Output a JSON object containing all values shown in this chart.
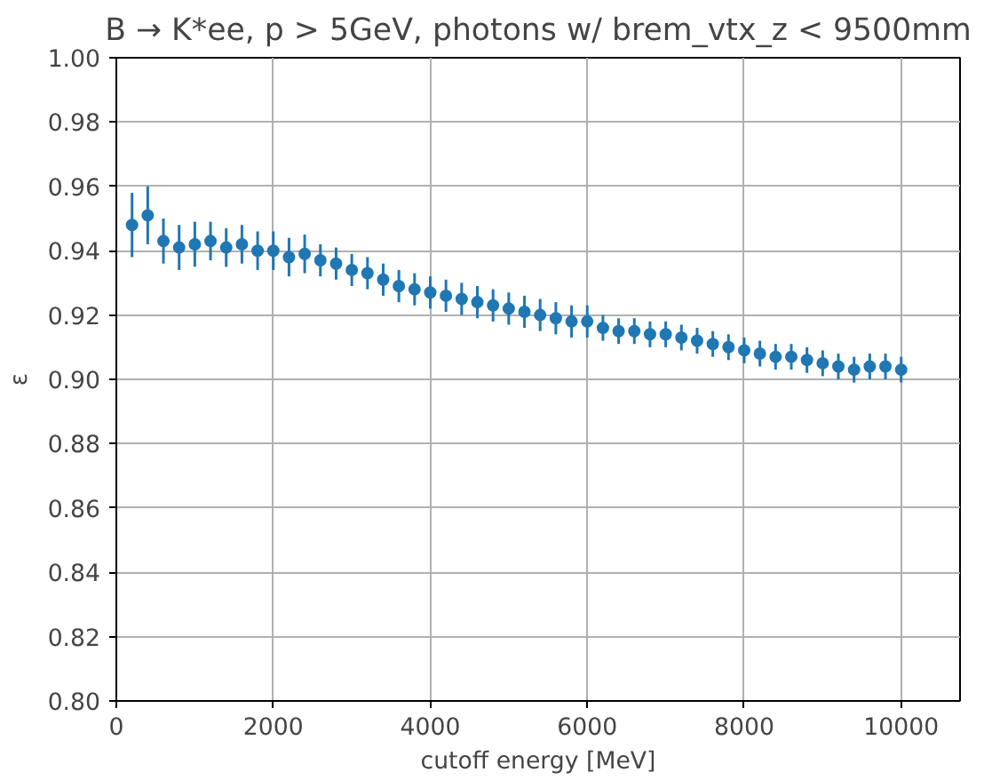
{
  "chart_data": {
    "type": "scatter",
    "title": "B → K*ee, p > 5GeV, photons w/ brem_vtx_z < 9500mm",
    "xlabel": "cutoff energy [MeV]",
    "ylabel": "ε",
    "x": [
      200,
      400,
      600,
      800,
      1000,
      1200,
      1400,
      1600,
      1800,
      2000,
      2200,
      2400,
      2600,
      2800,
      3000,
      3200,
      3400,
      3600,
      3800,
      4000,
      4200,
      4400,
      4600,
      4800,
      5000,
      5200,
      5400,
      5600,
      5800,
      6000,
      6200,
      6400,
      6600,
      6800,
      7000,
      7200,
      7400,
      7600,
      7800,
      8000,
      8200,
      8400,
      8600,
      8800,
      9000,
      9200,
      9400,
      9600,
      9800,
      10000
    ],
    "series": [
      {
        "color": "#1f77b4",
        "values": [
          0.948,
          0.951,
          0.943,
          0.941,
          0.942,
          0.943,
          0.941,
          0.942,
          0.94,
          0.94,
          0.938,
          0.939,
          0.937,
          0.936,
          0.934,
          0.933,
          0.931,
          0.929,
          0.928,
          0.927,
          0.926,
          0.925,
          0.924,
          0.923,
          0.922,
          0.921,
          0.92,
          0.919,
          0.918,
          0.918,
          0.916,
          0.915,
          0.915,
          0.914,
          0.914,
          0.913,
          0.912,
          0.911,
          0.91,
          0.909,
          0.908,
          0.907,
          0.907,
          0.906,
          0.905,
          0.904,
          0.903,
          0.904,
          0.904,
          0.903
        ],
        "errors": [
          0.01,
          0.009,
          0.007,
          0.007,
          0.007,
          0.006,
          0.006,
          0.006,
          0.006,
          0.006,
          0.006,
          0.006,
          0.005,
          0.005,
          0.005,
          0.005,
          0.005,
          0.005,
          0.005,
          0.005,
          0.005,
          0.005,
          0.005,
          0.005,
          0.005,
          0.005,
          0.005,
          0.005,
          0.005,
          0.005,
          0.004,
          0.004,
          0.004,
          0.004,
          0.004,
          0.004,
          0.004,
          0.004,
          0.004,
          0.004,
          0.004,
          0.004,
          0.004,
          0.004,
          0.004,
          0.004,
          0.004,
          0.004,
          0.004,
          0.004
        ]
      }
    ],
    "marker": "circle",
    "grid": true,
    "xlim": [
      0,
      10750
    ],
    "xticks": [
      0,
      2000,
      4000,
      6000,
      8000,
      10000
    ],
    "ylim": [
      0.8,
      1.0
    ],
    "yticks": [
      {
        "value": 0.8,
        "label": "0.80"
      },
      {
        "value": 0.82,
        "label": "0.82"
      },
      {
        "value": 0.84,
        "label": "0.84"
      },
      {
        "value": 0.86,
        "label": "0.86"
      },
      {
        "value": 0.88,
        "label": "0.88"
      },
      {
        "value": 0.9,
        "label": "0.90"
      },
      {
        "value": 0.92,
        "label": "0.92"
      },
      {
        "value": 0.94,
        "label": "0.94"
      },
      {
        "value": 0.96,
        "label": "0.96"
      },
      {
        "value": 0.98,
        "label": "0.98"
      },
      {
        "value": 1.0,
        "label": "1.00"
      }
    ]
  }
}
